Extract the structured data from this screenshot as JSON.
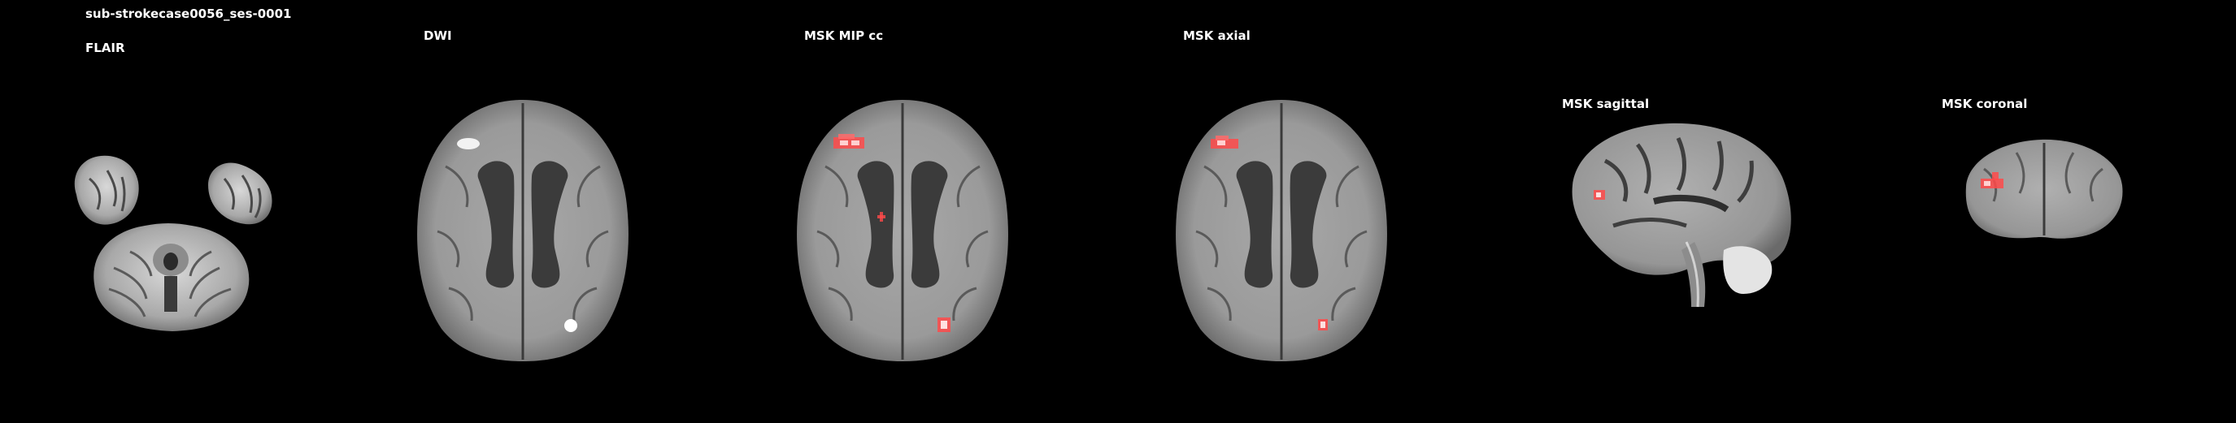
{
  "figure": {
    "subject_title": "sub-strokecase0056_ses-0001",
    "panels": [
      {
        "key": "flair",
        "label": "FLAIR"
      },
      {
        "key": "dwi",
        "label": "DWI"
      },
      {
        "key": "msk_mip_cc",
        "label": "MSK MIP cc"
      },
      {
        "key": "msk_axial",
        "label": "MSK axial"
      },
      {
        "key": "msk_sagittal",
        "label": "MSK sagittal"
      },
      {
        "key": "msk_coronal",
        "label": "MSK coronal"
      }
    ]
  },
  "colors": {
    "background": "#000000",
    "label_text": "#ffffff",
    "lesion_mask": "#ff4a4a"
  }
}
